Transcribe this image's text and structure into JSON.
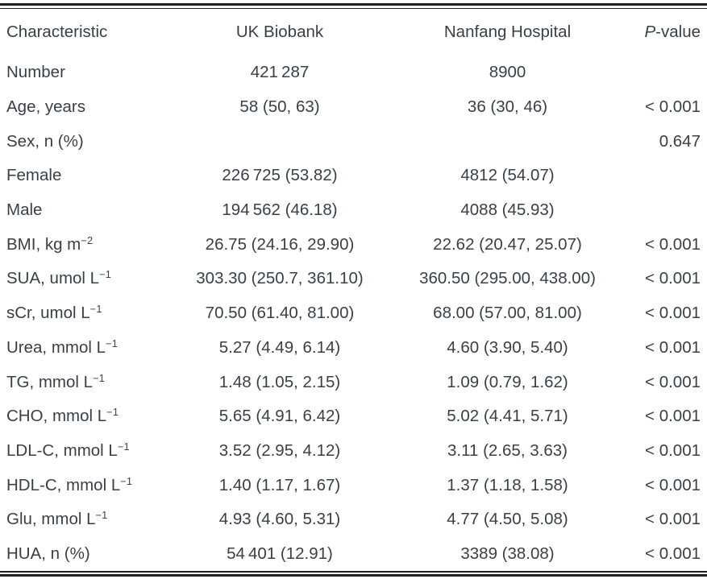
{
  "table": {
    "headers": {
      "characteristic": "Characteristic",
      "uk_biobank": "UK Biobank",
      "nanfang_hospital": "Nanfang Hospital",
      "p_value_italic": "P",
      "p_value_rest": "-value"
    },
    "rows": [
      {
        "label": "Number",
        "sup": "",
        "uk": "421 287",
        "nf": "8900",
        "p": ""
      },
      {
        "label": "Age, years",
        "sup": "",
        "uk": "58 (50, 63)",
        "nf": "36 (30, 46)",
        "p": "< 0.001"
      },
      {
        "label": "Sex, n (%)",
        "sup": "",
        "uk": "",
        "nf": "",
        "p": "0.647"
      },
      {
        "label": "Female",
        "sup": "",
        "uk": "226 725 (53.82)",
        "nf": "4812 (54.07)",
        "p": ""
      },
      {
        "label": "Male",
        "sup": "",
        "uk": "194 562 (46.18)",
        "nf": "4088 (45.93)",
        "p": ""
      },
      {
        "label": "BMI, kg m",
        "sup": "−2",
        "uk": "26.75 (24.16, 29.90)",
        "nf": "22.62 (20.47, 25.07)",
        "p": "< 0.001"
      },
      {
        "label": "SUA, umol L",
        "sup": "−1",
        "uk": "303.30 (250.7, 361.10)",
        "nf": "360.50 (295.00, 438.00)",
        "p": "< 0.001"
      },
      {
        "label": "sCr, umol L",
        "sup": "−1",
        "uk": "70.50 (61.40, 81.00)",
        "nf": "68.00 (57.00, 81.00)",
        "p": "< 0.001"
      },
      {
        "label": "Urea, mmol L",
        "sup": "−1",
        "uk": "5.27 (4.49, 6.14)",
        "nf": "4.60 (3.90, 5.40)",
        "p": "< 0.001"
      },
      {
        "label": "TG, mmol L",
        "sup": "−1",
        "uk": "1.48 (1.05, 2.15)",
        "nf": "1.09 (0.79, 1.62)",
        "p": "< 0.001"
      },
      {
        "label": "CHO, mmol L",
        "sup": "−1",
        "uk": "5.65 (4.91, 6.42)",
        "nf": "5.02 (4.41, 5.71)",
        "p": "< 0.001"
      },
      {
        "label": "LDL-C, mmol L",
        "sup": "−1",
        "uk": "3.52 (2.95, 4.12)",
        "nf": "3.11 (2.65, 3.63)",
        "p": "< 0.001"
      },
      {
        "label": "HDL-C, mmol L",
        "sup": "−1",
        "uk": "1.40 (1.17, 1.67)",
        "nf": "1.37 (1.18, 1.58)",
        "p": "< 0.001"
      },
      {
        "label": "Glu, mmol L",
        "sup": "−1",
        "uk": "4.93 (4.60, 5.31)",
        "nf": "4.77 (4.50, 5.08)",
        "p": "< 0.001"
      },
      {
        "label": "HUA, n (%)",
        "sup": "",
        "uk": "54 401 (12.91)",
        "nf": "3389 (38.08)",
        "p": "< 0.001"
      }
    ]
  },
  "colors": {
    "text": "#3a3f46",
    "rule": "#202126",
    "background": "#ffffff"
  }
}
